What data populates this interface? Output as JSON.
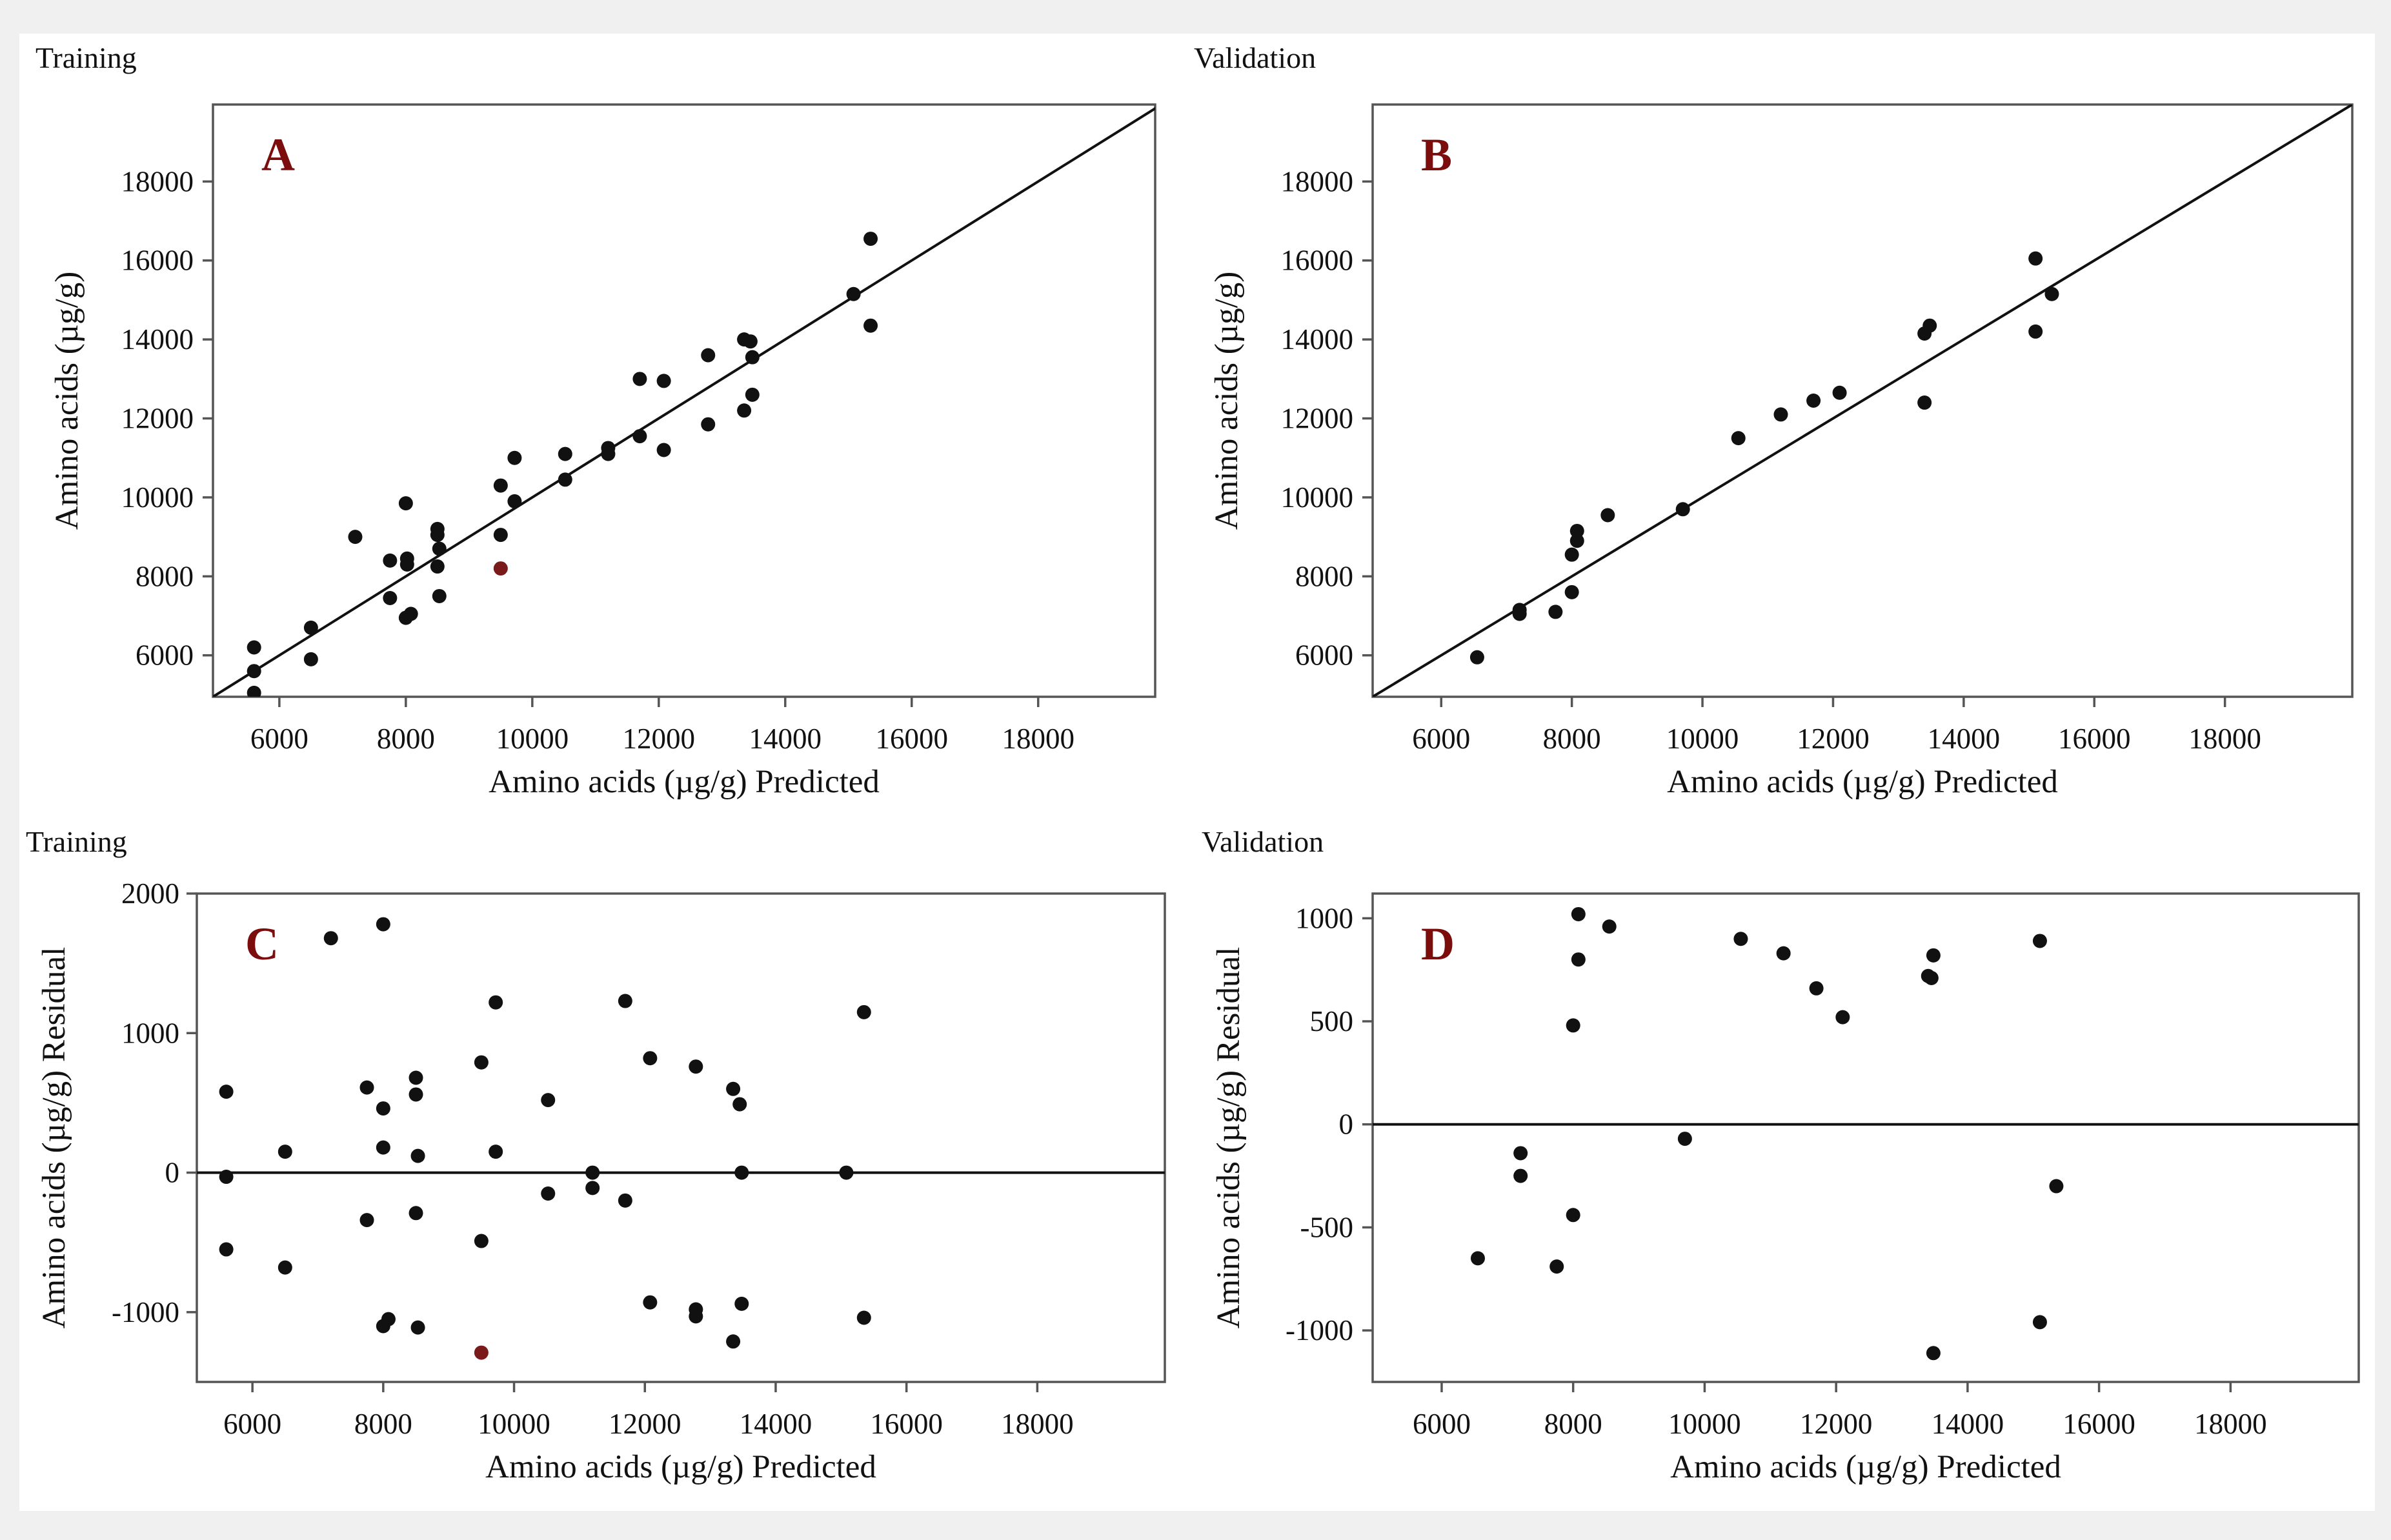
{
  "figure": {
    "bg_color": "#f0f0f0",
    "point_color": "#111111",
    "outlier_color": "#7b1a1a",
    "letter_color": "#7b0d0d"
  },
  "chart_data": [
    {
      "type": "scatter",
      "panel_id": "A",
      "letter": "A",
      "section_title": "Training",
      "xlabel": "Amino acids (µg/g) Predicted",
      "ylabel": "Amino acids (µg/g)",
      "xlim": [
        4950,
        19850
      ],
      "ylim": [
        4950,
        19950
      ],
      "x_ticks": [
        6000,
        8000,
        10000,
        12000,
        14000,
        16000,
        18000
      ],
      "y_ticks": [
        6000,
        8000,
        10000,
        12000,
        14000,
        16000,
        18000
      ],
      "reference_line": {
        "kind": "identity",
        "label": "y = x"
      },
      "points": [
        {
          "x": 5600,
          "y": 6200
        },
        {
          "x": 5600,
          "y": 5600
        },
        {
          "x": 5600,
          "y": 5050
        },
        {
          "x": 6500,
          "y": 6700
        },
        {
          "x": 6500,
          "y": 5900
        },
        {
          "x": 7200,
          "y": 9000
        },
        {
          "x": 7750,
          "y": 8400
        },
        {
          "x": 7750,
          "y": 7450
        },
        {
          "x": 8000,
          "y": 9850
        },
        {
          "x": 8020,
          "y": 8450
        },
        {
          "x": 8020,
          "y": 8300
        },
        {
          "x": 8000,
          "y": 6950
        },
        {
          "x": 8080,
          "y": 7050
        },
        {
          "x": 8500,
          "y": 9200
        },
        {
          "x": 8500,
          "y": 9050
        },
        {
          "x": 8530,
          "y": 8700
        },
        {
          "x": 8500,
          "y": 8250
        },
        {
          "x": 8530,
          "y": 7500
        },
        {
          "x": 9500,
          "y": 10300
        },
        {
          "x": 9500,
          "y": 9050
        },
        {
          "x": 9500,
          "y": 8200,
          "outlier": true
        },
        {
          "x": 9720,
          "y": 11000
        },
        {
          "x": 9720,
          "y": 9900
        },
        {
          "x": 10520,
          "y": 11100
        },
        {
          "x": 10520,
          "y": 10450
        },
        {
          "x": 11200,
          "y": 11250
        },
        {
          "x": 11200,
          "y": 11100
        },
        {
          "x": 11700,
          "y": 13000
        },
        {
          "x": 11700,
          "y": 11550
        },
        {
          "x": 12080,
          "y": 12950
        },
        {
          "x": 12080,
          "y": 11200
        },
        {
          "x": 12780,
          "y": 13600
        },
        {
          "x": 12780,
          "y": 11850
        },
        {
          "x": 13350,
          "y": 14000
        },
        {
          "x": 13450,
          "y": 13950
        },
        {
          "x": 13350,
          "y": 12200
        },
        {
          "x": 13480,
          "y": 13550
        },
        {
          "x": 13480,
          "y": 12600
        },
        {
          "x": 15080,
          "y": 15150
        },
        {
          "x": 15350,
          "y": 16550
        },
        {
          "x": 15350,
          "y": 14350
        }
      ]
    },
    {
      "type": "scatter",
      "panel_id": "B",
      "letter": "B",
      "section_title": "Validation",
      "xlabel": "Amino acids (µg/g) Predicted",
      "ylabel": "Amino acids (µg/g)",
      "xlim": [
        4950,
        19950
      ],
      "ylim": [
        4950,
        19950
      ],
      "x_ticks": [
        6000,
        8000,
        10000,
        12000,
        14000,
        16000,
        18000
      ],
      "y_ticks": [
        6000,
        8000,
        10000,
        12000,
        14000,
        16000,
        18000
      ],
      "reference_line": {
        "kind": "identity",
        "label": "y = x"
      },
      "points": [
        {
          "x": 6550,
          "y": 5950
        },
        {
          "x": 7200,
          "y": 7150
        },
        {
          "x": 7200,
          "y": 7050
        },
        {
          "x": 7750,
          "y": 7100
        },
        {
          "x": 8000,
          "y": 8550
        },
        {
          "x": 8000,
          "y": 7600
        },
        {
          "x": 8080,
          "y": 9150
        },
        {
          "x": 8080,
          "y": 8900
        },
        {
          "x": 8550,
          "y": 9550
        },
        {
          "x": 9700,
          "y": 9700
        },
        {
          "x": 10550,
          "y": 11500
        },
        {
          "x": 11200,
          "y": 12100
        },
        {
          "x": 11700,
          "y": 12450
        },
        {
          "x": 12100,
          "y": 12650
        },
        {
          "x": 13400,
          "y": 14150
        },
        {
          "x": 13480,
          "y": 14350
        },
        {
          "x": 13400,
          "y": 12400
        },
        {
          "x": 15100,
          "y": 16050
        },
        {
          "x": 15100,
          "y": 14200
        },
        {
          "x": 15350,
          "y": 15150
        }
      ]
    },
    {
      "type": "scatter",
      "panel_id": "C",
      "letter": "C",
      "section_title": "Training",
      "xlabel": "Amino acids (µg/g) Predicted",
      "ylabel": "Amino acids (µg/g) Residual",
      "xlim": [
        5150,
        19950
      ],
      "ylim": [
        -1500,
        2000
      ],
      "x_ticks": [
        6000,
        8000,
        10000,
        12000,
        14000,
        16000,
        18000
      ],
      "y_ticks": [
        -1000,
        0,
        1000,
        2000
      ],
      "reference_line": {
        "kind": "horizontal",
        "y": 0
      },
      "points": [
        {
          "x": 5600,
          "y": 580
        },
        {
          "x": 5600,
          "y": -30
        },
        {
          "x": 5600,
          "y": -550
        },
        {
          "x": 6500,
          "y": 150
        },
        {
          "x": 6500,
          "y": -680
        },
        {
          "x": 7200,
          "y": 1680
        },
        {
          "x": 7750,
          "y": 610
        },
        {
          "x": 7750,
          "y": -340
        },
        {
          "x": 8000,
          "y": 1780
        },
        {
          "x": 8000,
          "y": 460
        },
        {
          "x": 8000,
          "y": 180
        },
        {
          "x": 8000,
          "y": -1100
        },
        {
          "x": 8080,
          "y": -1050
        },
        {
          "x": 8500,
          "y": 680
        },
        {
          "x": 8500,
          "y": 560
        },
        {
          "x": 8530,
          "y": 120
        },
        {
          "x": 8500,
          "y": -290
        },
        {
          "x": 8530,
          "y": -1110
        },
        {
          "x": 9500,
          "y": 790
        },
        {
          "x": 9500,
          "y": -490
        },
        {
          "x": 9500,
          "y": -1290,
          "outlier": true
        },
        {
          "x": 9720,
          "y": 1220
        },
        {
          "x": 9720,
          "y": 150
        },
        {
          "x": 10520,
          "y": 520
        },
        {
          "x": 10520,
          "y": -150
        },
        {
          "x": 11200,
          "y": 0
        },
        {
          "x": 11200,
          "y": -110
        },
        {
          "x": 11700,
          "y": 1230
        },
        {
          "x": 11700,
          "y": -200
        },
        {
          "x": 12080,
          "y": 820
        },
        {
          "x": 12080,
          "y": -930
        },
        {
          "x": 12780,
          "y": 760
        },
        {
          "x": 12780,
          "y": -980
        },
        {
          "x": 12780,
          "y": -1030
        },
        {
          "x": 13350,
          "y": 600
        },
        {
          "x": 13450,
          "y": 490
        },
        {
          "x": 13350,
          "y": -1210
        },
        {
          "x": 13480,
          "y": 0
        },
        {
          "x": 13480,
          "y": -940
        },
        {
          "x": 15080,
          "y": 0
        },
        {
          "x": 15350,
          "y": 1150
        },
        {
          "x": 15350,
          "y": -1040
        }
      ]
    },
    {
      "type": "scatter",
      "panel_id": "D",
      "letter": "D",
      "section_title": "Validation",
      "xlabel": "Amino acids (µg/g) Predicted",
      "ylabel": "Amino acids (µg/g) Residual",
      "xlim": [
        4950,
        19950
      ],
      "ylim": [
        -1250,
        1120
      ],
      "x_ticks": [
        6000,
        8000,
        10000,
        12000,
        14000,
        16000,
        18000
      ],
      "y_ticks": [
        -1000,
        -500,
        0,
        500,
        1000
      ],
      "reference_line": {
        "kind": "horizontal",
        "y": 0
      },
      "points": [
        {
          "x": 6550,
          "y": -650
        },
        {
          "x": 7200,
          "y": -140
        },
        {
          "x": 7200,
          "y": -250
        },
        {
          "x": 7750,
          "y": -690
        },
        {
          "x": 8000,
          "y": 480
        },
        {
          "x": 8000,
          "y": -440
        },
        {
          "x": 8080,
          "y": 1020
        },
        {
          "x": 8080,
          "y": 800
        },
        {
          "x": 8550,
          "y": 960
        },
        {
          "x": 9700,
          "y": -70
        },
        {
          "x": 10550,
          "y": 900
        },
        {
          "x": 11200,
          "y": 830
        },
        {
          "x": 11700,
          "y": 660
        },
        {
          "x": 12100,
          "y": 520
        },
        {
          "x": 13400,
          "y": 720
        },
        {
          "x": 13450,
          "y": 710
        },
        {
          "x": 13480,
          "y": 820
        },
        {
          "x": 13480,
          "y": -1110
        },
        {
          "x": 15100,
          "y": 890
        },
        {
          "x": 15100,
          "y": -960
        },
        {
          "x": 15350,
          "y": -300
        }
      ]
    }
  ]
}
